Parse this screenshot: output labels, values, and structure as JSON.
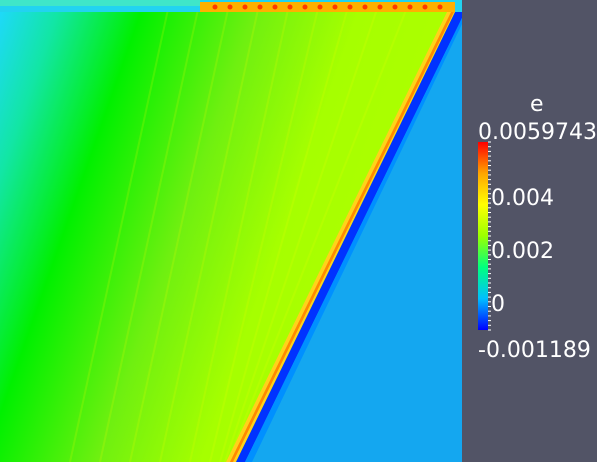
{
  "colorbar": {
    "title": "e",
    "max_label": "0.0059743",
    "min_label": "-0.001189",
    "tick_labels": [
      "0.004",
      "0.002",
      "0"
    ],
    "range": [
      -0.001189,
      0.0059743
    ],
    "colormap": [
      "#0000ff",
      "#00bfff",
      "#00ff7f",
      "#9bff00",
      "#ffff00",
      "#ffa500",
      "#ff0000"
    ]
  },
  "colors": {
    "background": "#525466",
    "label_text": "#ffffff"
  }
}
